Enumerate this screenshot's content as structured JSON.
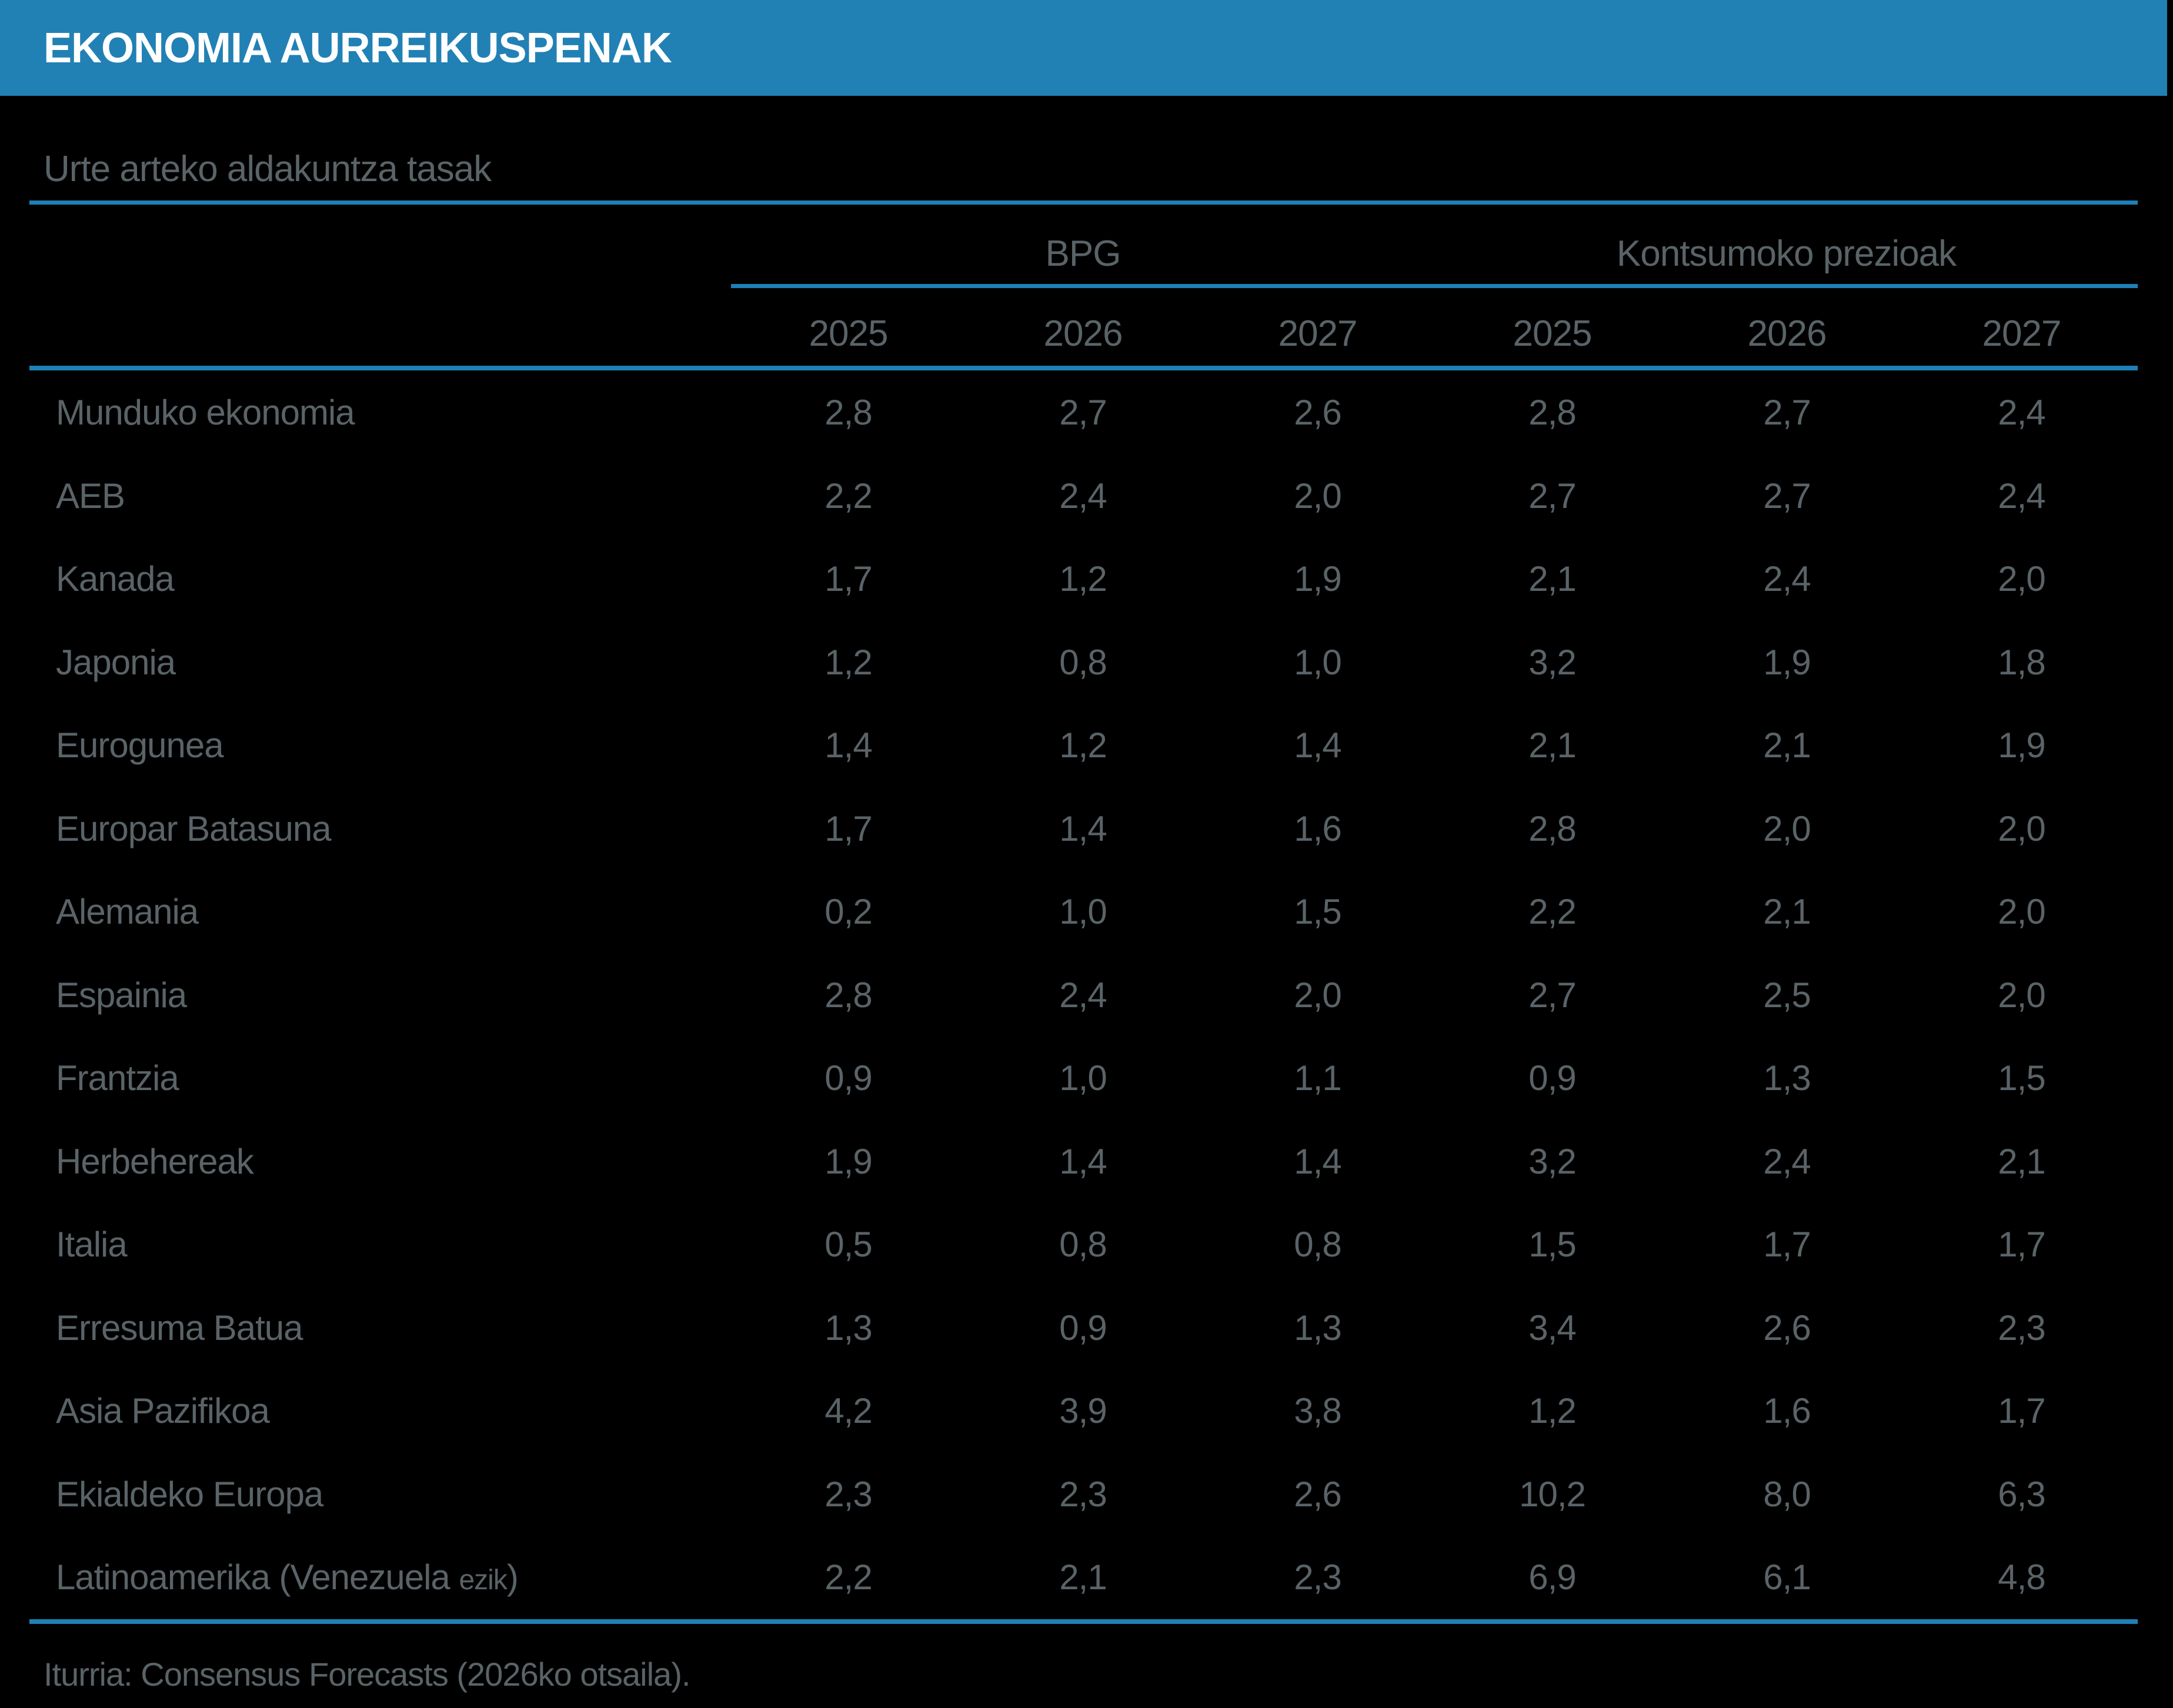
{
  "chart_data": {
    "type": "table",
    "title": "EKONOMIA AURREIKUSPENAK",
    "subtitle": "Urte arteko aldakuntza tasak",
    "column_groups": [
      {
        "label": "BPG",
        "years": [
          "2025",
          "2026",
          "2027"
        ]
      },
      {
        "label": "Kontsumoko prezioak",
        "years": [
          "2025",
          "2026",
          "2027"
        ]
      }
    ],
    "rows": [
      {
        "label": "Munduko ekonomia",
        "bpg": [
          2.8,
          2.7,
          2.6
        ],
        "kontsumoko_prezioak": [
          2.8,
          2.7,
          2.4
        ]
      },
      {
        "label": "AEB",
        "bpg": [
          2.2,
          2.4,
          2.0
        ],
        "kontsumoko_prezioak": [
          2.7,
          2.7,
          2.4
        ]
      },
      {
        "label": "Kanada",
        "bpg": [
          1.7,
          1.2,
          1.9
        ],
        "kontsumoko_prezioak": [
          2.1,
          2.4,
          2.0
        ]
      },
      {
        "label": "Japonia",
        "bpg": [
          1.2,
          0.8,
          1.0
        ],
        "kontsumoko_prezioak": [
          3.2,
          1.9,
          1.8
        ]
      },
      {
        "label": "Eurogunea",
        "bpg": [
          1.4,
          1.2,
          1.4
        ],
        "kontsumoko_prezioak": [
          2.1,
          2.1,
          1.9
        ]
      },
      {
        "label": "Europar Batasuna",
        "bpg": [
          1.7,
          1.4,
          1.6
        ],
        "kontsumoko_prezioak": [
          2.8,
          2.0,
          2.0
        ]
      },
      {
        "label": "Alemania",
        "bpg": [
          0.2,
          1.0,
          1.5
        ],
        "kontsumoko_prezioak": [
          2.2,
          2.1,
          2.0
        ]
      },
      {
        "label": "Espainia",
        "bpg": [
          2.8,
          2.4,
          2.0
        ],
        "kontsumoko_prezioak": [
          2.7,
          2.5,
          2.0
        ]
      },
      {
        "label": "Frantzia",
        "bpg": [
          0.9,
          1.0,
          1.1
        ],
        "kontsumoko_prezioak": [
          0.9,
          1.3,
          1.5
        ]
      },
      {
        "label": "Herbehereak",
        "bpg": [
          1.9,
          1.4,
          1.4
        ],
        "kontsumoko_prezioak": [
          3.2,
          2.4,
          2.1
        ]
      },
      {
        "label": "Italia",
        "bpg": [
          0.5,
          0.8,
          0.8
        ],
        "kontsumoko_prezioak": [
          1.5,
          1.7,
          1.7
        ]
      },
      {
        "label": "Erresuma Batua",
        "bpg": [
          1.3,
          0.9,
          1.3
        ],
        "kontsumoko_prezioak": [
          3.4,
          2.6,
          2.3
        ]
      },
      {
        "label": "Asia Pazifikoa",
        "bpg": [
          4.2,
          3.9,
          3.8
        ],
        "kontsumoko_prezioak": [
          1.2,
          1.6,
          1.7
        ]
      },
      {
        "label": "Ekialdeko Europa",
        "bpg": [
          2.3,
          2.3,
          2.6
        ],
        "kontsumoko_prezioak": [
          10.2,
          8.0,
          6.3
        ]
      },
      {
        "label": "Latinoamerika (Venezuela ezik)",
        "label_parts": [
          {
            "text": "Latinoamerika (Venezuela ",
            "size": "normal"
          },
          {
            "text": "ezik",
            "size": "small"
          },
          {
            "text": ")",
            "size": "normal"
          }
        ],
        "bpg": [
          2.2,
          2.1,
          2.3
        ],
        "kontsumoko_prezioak": [
          6.9,
          6.1,
          4.8
        ]
      }
    ],
    "number_format": "decimal-comma, 1 fraction digit",
    "source_note": "Iturria: Consensus Forecasts (2026ko otsaila)."
  },
  "colors": {
    "title_bar_blue": "#2181b4",
    "rule_blue": "#1e80b6",
    "text_grey": "#5a6367",
    "title_text": "#ffffff",
    "background": "#000000"
  }
}
